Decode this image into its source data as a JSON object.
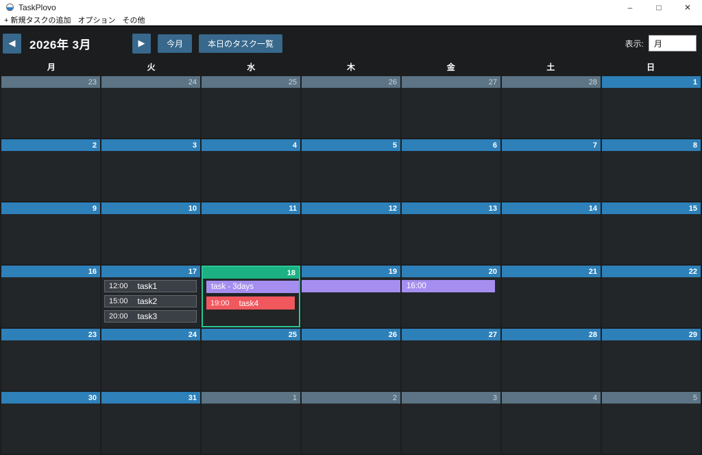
{
  "window": {
    "title": "TaskPlovo",
    "controls": {
      "minimize": "–",
      "maximize": "□",
      "close": "✕"
    }
  },
  "menu": {
    "items": [
      "+ 新規タスクの追加",
      "オプション",
      "その他"
    ]
  },
  "toolbar": {
    "prev_label": "◀",
    "next_label": "▶",
    "month_title": "2026年 3月",
    "today_button": "今月",
    "todays_tasks_button": "本日のタスク一覧",
    "view_label": "表示:",
    "view_value": "月"
  },
  "weekdays": [
    "月",
    "火",
    "水",
    "木",
    "金",
    "土",
    "日"
  ],
  "colors": {
    "button_blue": "#38688c",
    "date_header_current": "#2e80b9",
    "date_header_other": "#5c7485",
    "today_green": "#1bb183",
    "today_border": "#2bc795",
    "task_gray": "#3b4046",
    "task_purple": "#a58ef0",
    "task_red": "#f0585e"
  },
  "calendar": {
    "weeks": [
      [
        {
          "date": "23",
          "month": "other"
        },
        {
          "date": "24",
          "month": "other"
        },
        {
          "date": "25",
          "month": "other"
        },
        {
          "date": "26",
          "month": "other"
        },
        {
          "date": "27",
          "month": "other"
        },
        {
          "date": "28",
          "month": "other"
        },
        {
          "date": "1",
          "month": "current"
        }
      ],
      [
        {
          "date": "2",
          "month": "current"
        },
        {
          "date": "3",
          "month": "current"
        },
        {
          "date": "4",
          "month": "current"
        },
        {
          "date": "5",
          "month": "current"
        },
        {
          "date": "6",
          "month": "current"
        },
        {
          "date": "7",
          "month": "current"
        },
        {
          "date": "8",
          "month": "current"
        }
      ],
      [
        {
          "date": "9",
          "month": "current"
        },
        {
          "date": "10",
          "month": "current"
        },
        {
          "date": "11",
          "month": "current"
        },
        {
          "date": "12",
          "month": "current"
        },
        {
          "date": "13",
          "month": "current"
        },
        {
          "date": "14",
          "month": "current"
        },
        {
          "date": "15",
          "month": "current"
        }
      ],
      [
        {
          "date": "16",
          "month": "current"
        },
        {
          "date": "17",
          "month": "current",
          "tasks": [
            {
              "time": "12:00",
              "name": "task1",
              "color": "gray"
            },
            {
              "time": "15:00",
              "name": "task2",
              "color": "gray"
            },
            {
              "time": "20:00",
              "name": "task3",
              "color": "gray"
            }
          ]
        },
        {
          "date": "18",
          "month": "current",
          "today": true,
          "span": {
            "segment": "start",
            "label": "task - 3days"
          },
          "tasks": [
            {
              "time": "19:00",
              "name": "task4",
              "color": "red"
            }
          ]
        },
        {
          "date": "19",
          "month": "current",
          "span": {
            "segment": "middle",
            "label": ""
          }
        },
        {
          "date": "20",
          "month": "current",
          "span": {
            "segment": "end",
            "label": "16:00"
          }
        },
        {
          "date": "21",
          "month": "current"
        },
        {
          "date": "22",
          "month": "current"
        }
      ],
      [
        {
          "date": "23",
          "month": "current"
        },
        {
          "date": "24",
          "month": "current"
        },
        {
          "date": "25",
          "month": "current"
        },
        {
          "date": "26",
          "month": "current"
        },
        {
          "date": "27",
          "month": "current"
        },
        {
          "date": "28",
          "month": "current"
        },
        {
          "date": "29",
          "month": "current"
        }
      ],
      [
        {
          "date": "30",
          "month": "current"
        },
        {
          "date": "31",
          "month": "current"
        },
        {
          "date": "1",
          "month": "other"
        },
        {
          "date": "2",
          "month": "other"
        },
        {
          "date": "3",
          "month": "other"
        },
        {
          "date": "4",
          "month": "other"
        },
        {
          "date": "5",
          "month": "other"
        }
      ]
    ]
  }
}
